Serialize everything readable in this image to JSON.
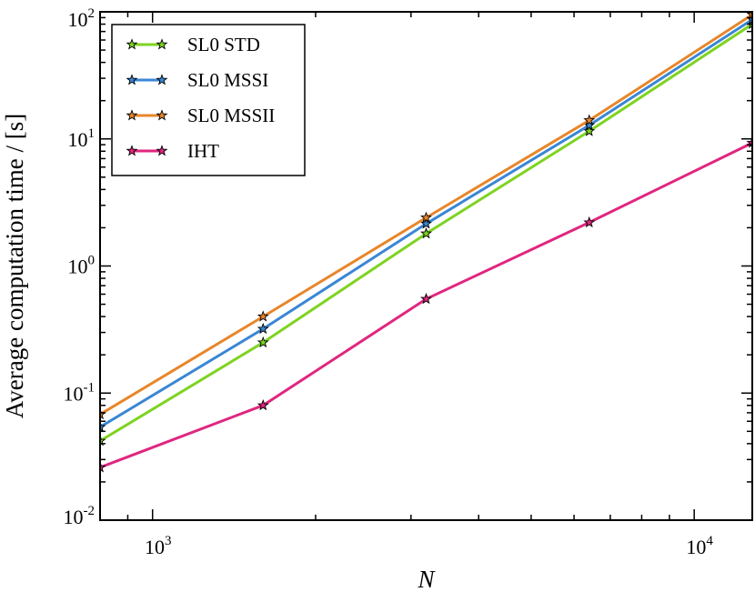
{
  "chart_data": {
    "type": "line",
    "scale": "log-log",
    "xlabel": "N",
    "ylabel": "Average computation time / [s]",
    "xlim": [
      800,
      12800
    ],
    "ylim": [
      0.01,
      100
    ],
    "x": [
      800,
      1600,
      3200,
      6400,
      12800
    ],
    "x_ticks": [
      {
        "base": "10",
        "exp": "3",
        "value": 1000
      },
      {
        "base": "10",
        "exp": "4",
        "value": 10000
      }
    ],
    "y_ticks": [
      {
        "base": "10",
        "exp": "-2",
        "value": 0.01
      },
      {
        "base": "10",
        "exp": "-1",
        "value": 0.1
      },
      {
        "base": "10",
        "exp": "0",
        "value": 1
      },
      {
        "base": "10",
        "exp": "1",
        "value": 10
      },
      {
        "base": "10",
        "exp": "2",
        "value": 100
      }
    ],
    "grid": false,
    "legend_position": "top-left",
    "series": [
      {
        "name": "SL0 STD",
        "color": "#7ed321",
        "values": [
          0.042,
          0.25,
          1.8,
          11.5,
          80
        ]
      },
      {
        "name": "SL0 MSSI",
        "color": "#3a86d4",
        "values": [
          0.054,
          0.32,
          2.15,
          12.8,
          87
        ]
      },
      {
        "name": "SL0 MSSII",
        "color": "#e8862a",
        "values": [
          0.068,
          0.4,
          2.4,
          14,
          95
        ]
      },
      {
        "name": "IHT",
        "color": "#e0267f",
        "values": [
          0.026,
          0.08,
          0.55,
          2.2,
          9.3
        ]
      }
    ]
  }
}
